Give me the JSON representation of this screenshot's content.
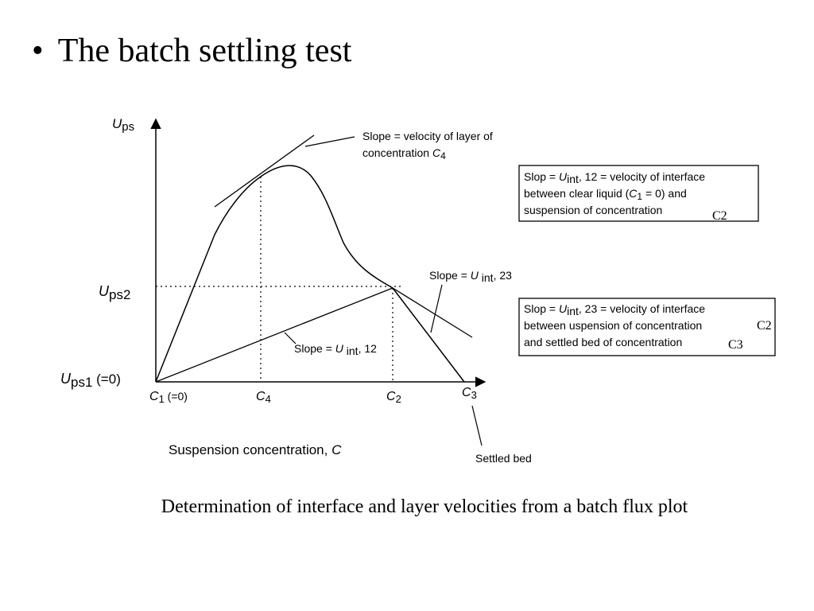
{
  "slide": {
    "bullet_symbol": "•",
    "title": "The batch settling test",
    "caption": "Determination of interface and layer velocities from a batch flux plot"
  },
  "diagram": {
    "y_axis_label": {
      "var": "U",
      "sub": "ps"
    },
    "x_axis_label": {
      "text": "Suspension concentration, ",
      "var": "C"
    },
    "y_ticks": [
      {
        "var": "U",
        "sub": "ps2",
        "after": ""
      },
      {
        "var": "U",
        "sub": "ps1",
        "after": " (=0)"
      }
    ],
    "x_ticks": [
      {
        "var": "C",
        "sub": "1",
        "after": " (=0)"
      },
      {
        "var": "C",
        "sub": "4",
        "after": ""
      },
      {
        "var": "C",
        "sub": "2",
        "after": ""
      },
      {
        "var": "C",
        "sub": "3",
        "after": ""
      }
    ],
    "annotations": {
      "tangent_c4": {
        "line1": "Slope = velocity of layer of",
        "line2_text": "concentration ",
        "line2_var": "C",
        "line2_sub": "4"
      },
      "slope_u23": {
        "text": "Slope = ",
        "var": "U",
        "sub": " int",
        "after": ", 23"
      },
      "slope_u12": {
        "text": "Slope = ",
        "var": "U",
        "sub": " int",
        "after": ", 12"
      },
      "settled_bed": "Settled bed"
    },
    "box1": {
      "line1_a": "Slop = ",
      "line1_var": "U",
      "line1_sub": "int",
      "line1_b": ", 12 = velocity of interface",
      "line2_a": "between clear liquid (",
      "line2_var": "C",
      "line2_sub": "1",
      "line2_b": " = 0) and",
      "line3": "suspension of concentration",
      "handwritten": "C2"
    },
    "box2": {
      "line1_a": "Slop = ",
      "line1_var": "U",
      "line1_sub": "int",
      "line1_b": ", 23 = velocity of interface",
      "line2": "between uspension of concentration",
      "line3": "and settled bed of concentration",
      "handwritten_1": "C2",
      "handwritten_2": "C3"
    }
  }
}
